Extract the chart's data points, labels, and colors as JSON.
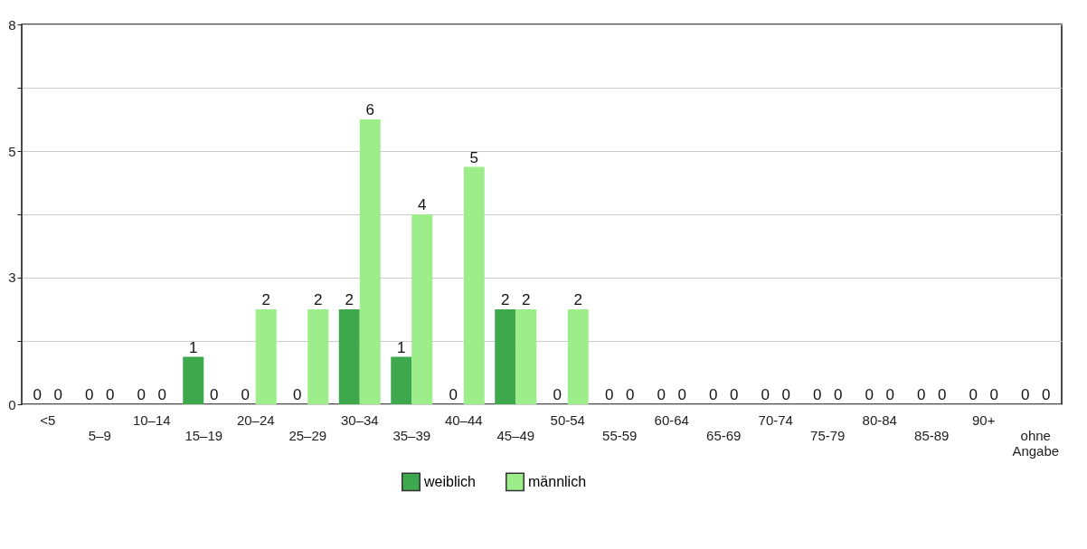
{
  "chart_data": {
    "type": "bar",
    "categories": [
      "<5",
      "5–9",
      "10–14",
      "15–19",
      "20–24",
      "25–29",
      "30–34",
      "35–39",
      "40–44",
      "45–49",
      "50-54",
      "55-59",
      "60-64",
      "65-69",
      "70-74",
      "75-79",
      "80-84",
      "85-89",
      "90+",
      "ohne Angabe"
    ],
    "series": [
      {
        "name": "weiblich",
        "color": "#3ea84c",
        "values": [
          0,
          0,
          0,
          1,
          0,
          0,
          2,
          1,
          0,
          2,
          0,
          0,
          0,
          0,
          0,
          0,
          0,
          0,
          0,
          0
        ]
      },
      {
        "name": "männlich",
        "color": "#9ded8a",
        "values": [
          0,
          0,
          0,
          0,
          2,
          2,
          6,
          4,
          5,
          2,
          2,
          0,
          0,
          0,
          0,
          0,
          0,
          0,
          0,
          0
        ]
      }
    ],
    "ylim": [
      0,
      8
    ],
    "yticks": [
      0,
      {
        "value": 1.333,
        "label": null
      },
      {
        "value": 2.667,
        "label": "3"
      },
      {
        "value": 4,
        "label": null
      },
      {
        "value": 5.333,
        "label": "5"
      },
      {
        "value": 6.667,
        "label": null
      },
      8
    ],
    "grid": "y",
    "legend": "bottom",
    "data_labels": true
  }
}
